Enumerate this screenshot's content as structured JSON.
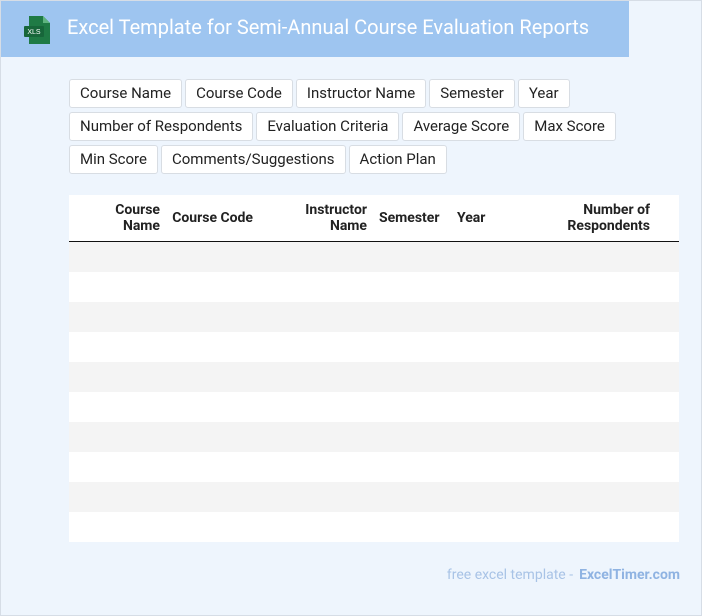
{
  "header": {
    "icon_label": "XLS",
    "title": "Excel Template for Semi-Annual Course Evaluation Reports"
  },
  "tags": [
    "Course Name",
    "Course Code",
    "Instructor Name",
    "Semester",
    "Year",
    "Number of Respondents",
    "Evaluation Criteria",
    "Average Score",
    "Max Score",
    "Min Score",
    "Comments/Suggestions",
    "Action Plan"
  ],
  "table": {
    "columns": [
      "Course Name",
      "Course Code",
      "Instructor Name",
      "Semester",
      "Year",
      "Number of Respondents"
    ]
  },
  "footer": {
    "text": "free excel template -",
    "site": "ExcelTimer.com"
  }
}
